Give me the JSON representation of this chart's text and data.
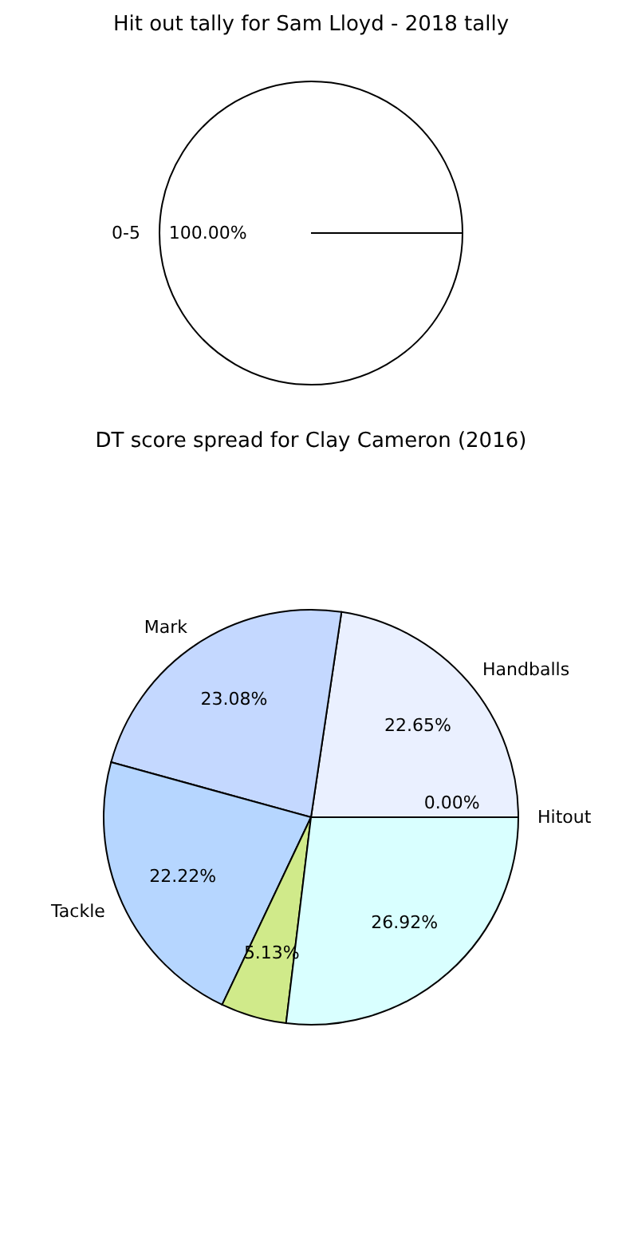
{
  "chart_data": [
    {
      "type": "pie",
      "title": "Hit out tally for Sam Lloyd - 2018 tally",
      "categories": [
        "0-5"
      ],
      "values": [
        100
      ],
      "colors": [
        "#ffffff"
      ],
      "value_labels": [
        "100.00%"
      ]
    },
    {
      "type": "pie",
      "title": "DT score spread for Clay Cameron (2016)",
      "categories": [
        "Hitout",
        "Handballs",
        "Mark",
        "Tackle",
        null,
        null
      ],
      "values": [
        0,
        22.65,
        23.08,
        22.22,
        5.13,
        26.92
      ],
      "colors": [
        "#e0e0ff",
        "#eaf0ff",
        "#c4d8ff",
        "#b6d6ff",
        "#d0ea8a",
        "#d9ffff"
      ],
      "value_labels": [
        "0.00%",
        "22.65%",
        "23.08%",
        "22.22%",
        "5.13%",
        "26.92%"
      ]
    }
  ]
}
